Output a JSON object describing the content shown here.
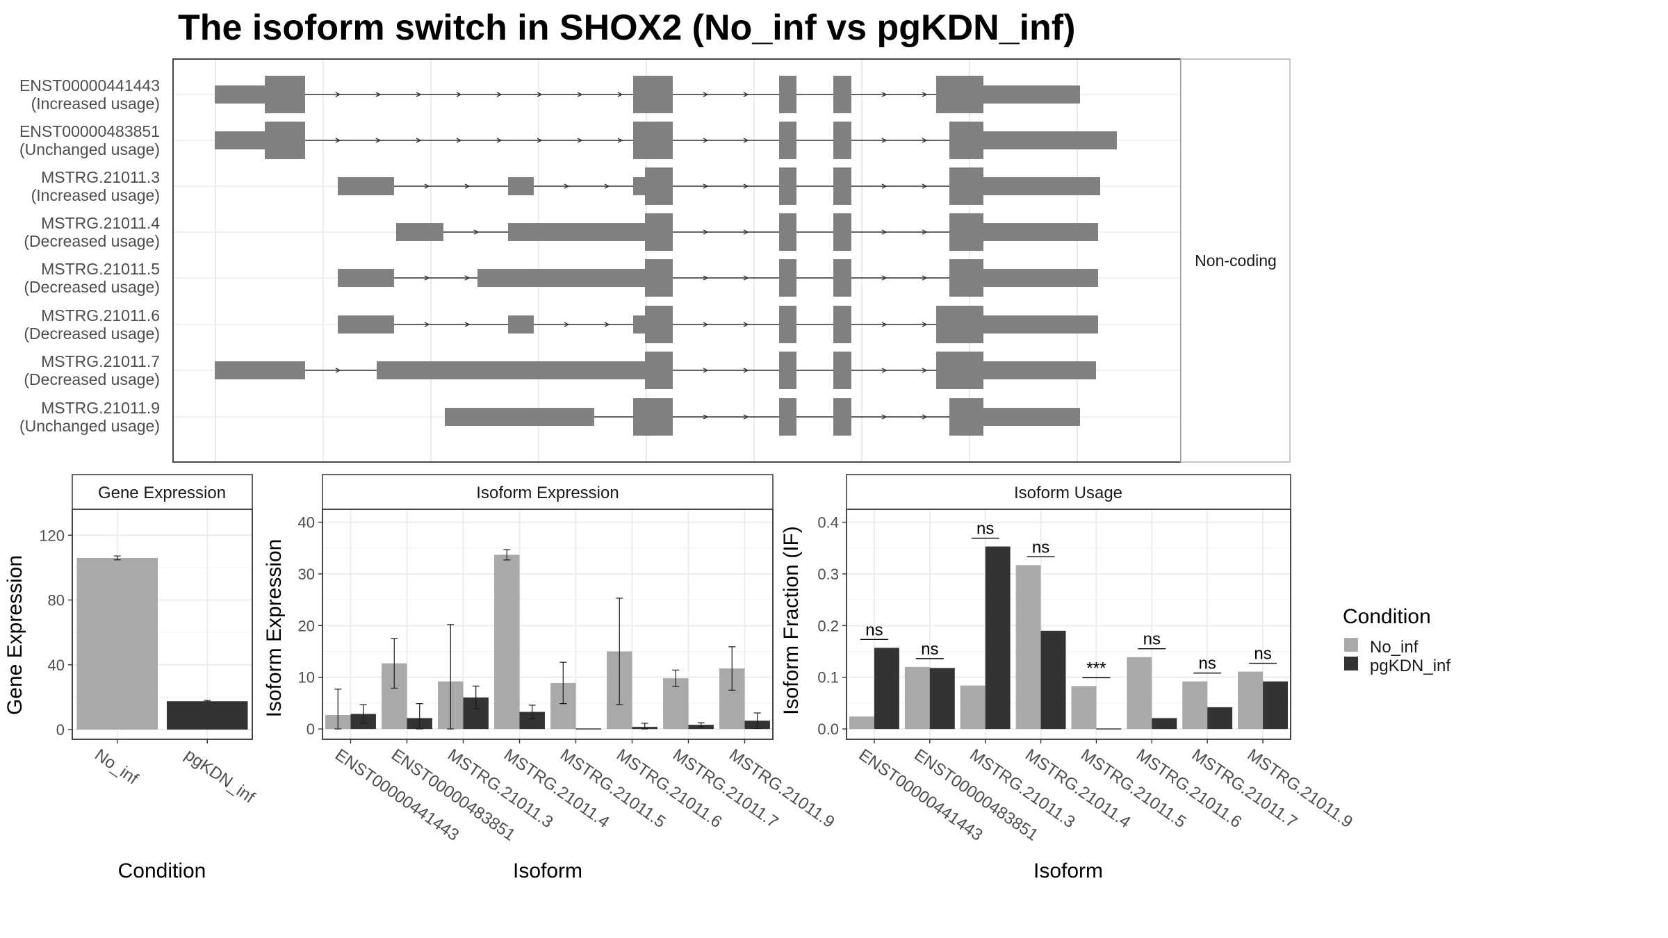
{
  "title": "The isoform switch in SHOX2 (No_inf vs pgKDN_inf)",
  "colors": {
    "no_inf": "#a9a9a9",
    "pgkdn_inf": "#333333",
    "exon": "#808080",
    "grid": "#ebebeb",
    "panel_border": "#333333",
    "strip_border": "#b3b3b3"
  },
  "structure": {
    "facet_label": "Non-coding",
    "isoforms": [
      {
        "name": "ENST00000441443",
        "status": "(Increased usage)"
      },
      {
        "name": "ENST00000483851",
        "status": "(Unchanged usage)"
      },
      {
        "name": "MSTRG.21011.3",
        "status": "(Increased usage)"
      },
      {
        "name": "MSTRG.21011.4",
        "status": "(Decreased usage)"
      },
      {
        "name": "MSTRG.21011.5",
        "status": "(Decreased usage)"
      },
      {
        "name": "MSTRG.21011.6",
        "status": "(Decreased usage)"
      },
      {
        "name": "MSTRG.21011.7",
        "status": "(Decreased usage)"
      },
      {
        "name": "MSTRG.21011.9",
        "status": "(Unchanged usage)"
      }
    ]
  },
  "legend": {
    "title": "Condition",
    "items": [
      "No_inf",
      "pgKDN_inf"
    ]
  },
  "chart_data": [
    {
      "type": "bar",
      "title": "Gene Expression",
      "xlabel": "Condition",
      "ylabel": "Gene Expression",
      "categories": [
        "No_inf",
        "pgKDN_inf"
      ],
      "values": [
        106,
        17.5
      ],
      "errors": [
        1.2,
        0.5
      ],
      "yticks": [
        0,
        40,
        80,
        120
      ],
      "ylim": [
        -6,
        136
      ]
    },
    {
      "type": "bar",
      "title": "Isoform Expression",
      "xlabel": "Isoform",
      "ylabel": "Isoform Expression",
      "categories": [
        "ENST00000441443",
        "ENST00000483851",
        "MSTRG.21011.3",
        "MSTRG.21011.4",
        "MSTRG.21011.5",
        "MSTRG.21011.6",
        "MSTRG.21011.7",
        "MSTRG.21011.9"
      ],
      "series": [
        {
          "name": "No_inf",
          "values": [
            2.7,
            12.7,
            9.2,
            33.7,
            8.9,
            15,
            9.8,
            11.7
          ],
          "errors": [
            5,
            4.8,
            11,
            1,
            4,
            10.3,
            1.6,
            4.2
          ]
        },
        {
          "name": "pgKDN_inf",
          "values": [
            2.9,
            2.1,
            6.1,
            3.3,
            0,
            0.4,
            0.8,
            1.6
          ],
          "errors": [
            1.8,
            2.8,
            2.2,
            1.3,
            0,
            0.7,
            0.4,
            1.5
          ]
        }
      ],
      "yticks": [
        0,
        10,
        20,
        30,
        40
      ],
      "ylim": [
        -2,
        42.5
      ]
    },
    {
      "type": "bar",
      "title": "Isoform Usage",
      "xlabel": "Isoform",
      "ylabel": "Isoform Fraction (IF)",
      "categories": [
        "ENST00000441443",
        "ENST00000483851",
        "MSTRG.21011.3",
        "MSTRG.21011.4",
        "MSTRG.21011.5",
        "MSTRG.21011.6",
        "MSTRG.21011.7",
        "MSTRG.21011.9"
      ],
      "series": [
        {
          "name": "No_inf",
          "values": [
            0.024,
            0.12,
            0.084,
            0.317,
            0.083,
            0.139,
            0.092,
            0.111
          ]
        },
        {
          "name": "pgKDN_inf",
          "values": [
            0.157,
            0.118,
            0.353,
            0.19,
            0,
            0.021,
            0.042,
            0.092
          ]
        }
      ],
      "significance": [
        "ns",
        "ns",
        "ns",
        "ns",
        "***",
        "ns",
        "ns",
        "ns"
      ],
      "yticks": [
        0.0,
        0.1,
        0.2,
        0.3,
        0.4
      ],
      "ylim": [
        -0.02,
        0.425
      ]
    }
  ]
}
